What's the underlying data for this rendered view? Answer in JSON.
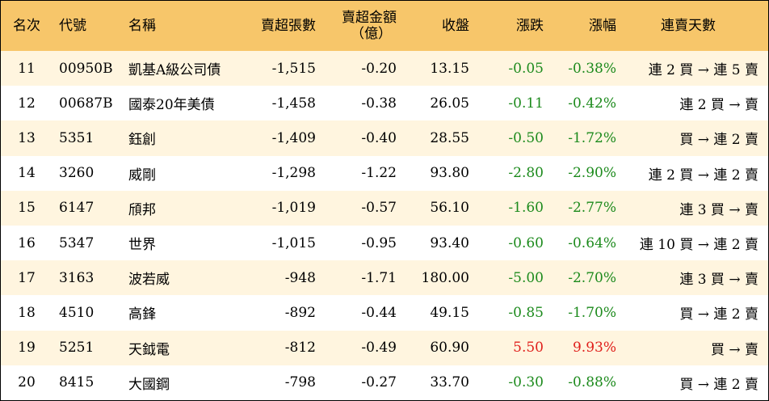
{
  "headers": {
    "rank": "名次",
    "code": "代號",
    "name": "名稱",
    "sell_lots": "賣超張數",
    "sell_amount_line1": "賣超金額",
    "sell_amount_line2": "（億）",
    "close": "收盤",
    "change": "漲跌",
    "change_pct": "漲幅",
    "consecutive_days": "連賣天數"
  },
  "colors": {
    "header_bg": "#f7c66a",
    "odd_row_bg": "#fff5df",
    "down": "#1c8a1c",
    "up": "#e0201c"
  },
  "rows": [
    {
      "rank": "11",
      "code": "00950B",
      "name": "凱基A級公司債",
      "sell_lots": "-1,515",
      "sell_amount": "-0.20",
      "close": "13.15",
      "change": "-0.05",
      "change_pct": "-0.38%",
      "trend": "down",
      "days": "連 2 買 → 連 5 賣"
    },
    {
      "rank": "12",
      "code": "00687B",
      "name": "國泰20年美債",
      "sell_lots": "-1,458",
      "sell_amount": "-0.38",
      "close": "26.05",
      "change": "-0.11",
      "change_pct": "-0.42%",
      "trend": "down",
      "days": "連 2 買 → 賣"
    },
    {
      "rank": "13",
      "code": "5351",
      "name": "鈺創",
      "sell_lots": "-1,409",
      "sell_amount": "-0.40",
      "close": "28.55",
      "change": "-0.50",
      "change_pct": "-1.72%",
      "trend": "down",
      "days": "買 → 連 2 賣"
    },
    {
      "rank": "14",
      "code": "3260",
      "name": "威剛",
      "sell_lots": "-1,298",
      "sell_amount": "-1.22",
      "close": "93.80",
      "change": "-2.80",
      "change_pct": "-2.90%",
      "trend": "down",
      "days": "連 2 買 → 連 2 賣"
    },
    {
      "rank": "15",
      "code": "6147",
      "name": "頎邦",
      "sell_lots": "-1,019",
      "sell_amount": "-0.57",
      "close": "56.10",
      "change": "-1.60",
      "change_pct": "-2.77%",
      "trend": "down",
      "days": "連 3 買 → 賣"
    },
    {
      "rank": "16",
      "code": "5347",
      "name": "世界",
      "sell_lots": "-1,015",
      "sell_amount": "-0.95",
      "close": "93.40",
      "change": "-0.60",
      "change_pct": "-0.64%",
      "trend": "down",
      "days": "連 10 買 → 連 2 賣"
    },
    {
      "rank": "17",
      "code": "3163",
      "name": "波若威",
      "sell_lots": "-948",
      "sell_amount": "-1.71",
      "close": "180.00",
      "change": "-5.00",
      "change_pct": "-2.70%",
      "trend": "down",
      "days": "連 3 買 → 賣"
    },
    {
      "rank": "18",
      "code": "4510",
      "name": "高鋒",
      "sell_lots": "-892",
      "sell_amount": "-0.44",
      "close": "49.15",
      "change": "-0.85",
      "change_pct": "-1.70%",
      "trend": "down",
      "days": "買 → 連 2 賣"
    },
    {
      "rank": "19",
      "code": "5251",
      "name": "天鉞電",
      "sell_lots": "-812",
      "sell_amount": "-0.49",
      "close": "60.90",
      "change": "5.50",
      "change_pct": "9.93%",
      "trend": "up",
      "days": "買 → 賣"
    },
    {
      "rank": "20",
      "code": "8415",
      "name": "大國鋼",
      "sell_lots": "-798",
      "sell_amount": "-0.27",
      "close": "33.70",
      "change": "-0.30",
      "change_pct": "-0.88%",
      "trend": "down",
      "days": "買 → 連 2 賣"
    }
  ]
}
